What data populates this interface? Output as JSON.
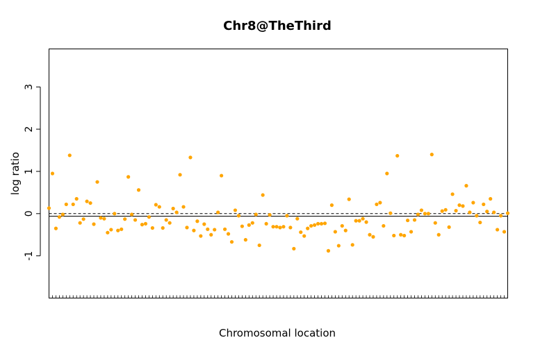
{
  "chart_data": {
    "type": "scatter",
    "title": "Chr8@TheThird",
    "xlabel": "Chromosomal location",
    "ylabel": "log ratio",
    "ylim": [
      -2,
      3.9
    ],
    "yticks": [
      -1,
      0,
      1,
      2,
      3
    ],
    "grid": false,
    "point_color": "#FFA500",
    "reference_lines": [
      {
        "y": 0,
        "style": "dashed",
        "color": "#000000"
      },
      {
        "y": -0.06,
        "style": "solid",
        "color": "#000000"
      }
    ],
    "series": [
      {
        "values": [
          0.13,
          0.95,
          -0.35,
          -0.08,
          -0.02,
          0.22,
          1.38,
          0.22,
          0.35,
          -0.22,
          -0.13,
          0.29,
          0.25,
          -0.25,
          0.75,
          -0.1,
          -0.12,
          -0.45,
          -0.38,
          0.0,
          -0.4,
          -0.37,
          -0.13,
          0.87,
          -0.02,
          -0.15,
          0.56,
          -0.26,
          -0.24,
          -0.08,
          -0.34,
          0.21,
          0.16,
          -0.34,
          -0.15,
          -0.22,
          0.12,
          0.03,
          0.92,
          0.16,
          -0.33,
          1.33,
          -0.4,
          -0.18,
          -0.53,
          -0.25,
          -0.37,
          -0.5,
          -0.38,
          0.03,
          0.9,
          -0.37,
          -0.48,
          -0.67,
          0.08,
          -0.05,
          -0.3,
          -0.62,
          -0.27,
          -0.22,
          -0.02,
          -0.75,
          0.44,
          -0.24,
          -0.03,
          -0.31,
          -0.31,
          -0.33,
          -0.31,
          -0.05,
          -0.33,
          -0.83,
          -0.12,
          -0.44,
          -0.53,
          -0.35,
          -0.29,
          -0.27,
          -0.24,
          -0.24,
          -0.23,
          -0.88,
          0.2,
          -0.43,
          -0.76,
          -0.29,
          -0.4,
          0.34,
          -0.74,
          -0.17,
          -0.17,
          -0.12,
          -0.2,
          -0.5,
          -0.55,
          0.22,
          0.26,
          -0.29,
          0.95,
          0.01,
          -0.52,
          1.37,
          -0.5,
          -0.52,
          -0.16,
          -0.43,
          -0.15,
          -0.02,
          0.08,
          0.0,
          0.0,
          1.4,
          -0.22,
          -0.5,
          0.06,
          0.09,
          -0.32,
          0.46,
          0.07,
          0.2,
          0.18,
          0.66,
          0.03,
          0.26,
          -0.05,
          -0.21,
          0.22,
          0.05,
          0.35,
          0.03,
          -0.38,
          -0.05,
          -0.43,
          0.01
        ]
      }
    ]
  }
}
